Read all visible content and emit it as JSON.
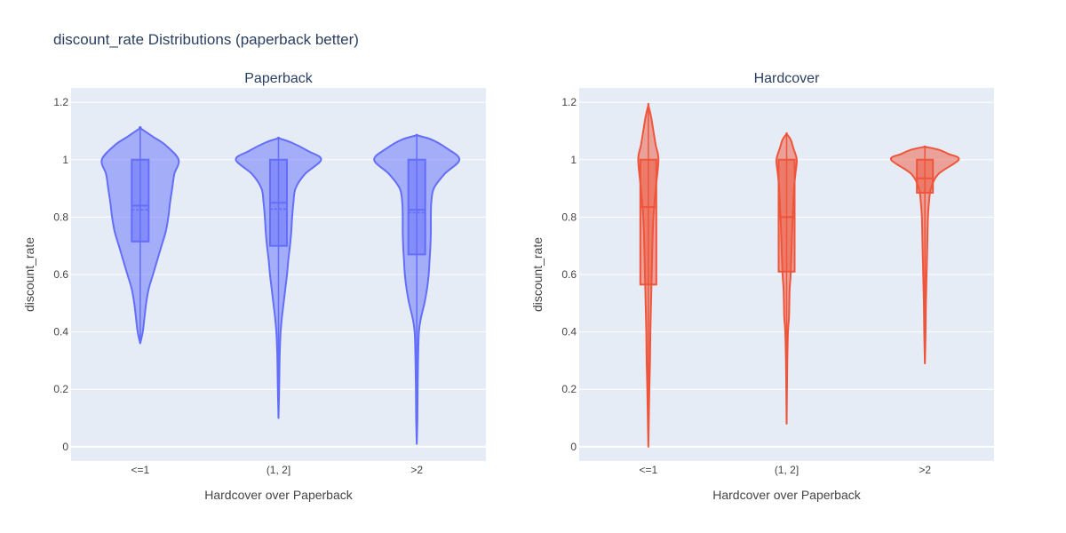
{
  "title": "discount_rate Distributions (paperback better)",
  "colors": {
    "plot_bg": "#e5ecf6",
    "grid": "#ffffff",
    "paperback": "#636efa",
    "hardcover": "#ef553b"
  },
  "chart_data": [
    {
      "type": "violin",
      "title": "Paperback",
      "xlabel": "Hardcover over Paperback",
      "ylabel": "discount_rate",
      "ylim": [
        -0.05,
        1.25
      ],
      "yticks": [
        0,
        0.2,
        0.4,
        0.6,
        0.8,
        1,
        1.2
      ],
      "ytick_labels": [
        "0",
        "0.2",
        "0.4",
        "0.6",
        "0.8",
        "1",
        "1.2"
      ],
      "grid": true,
      "categories": [
        "<=1",
        "(1, 2]",
        ">2"
      ],
      "color": "paperback",
      "violins": [
        {
          "category": "<=1",
          "box": {
            "q1": 0.715,
            "median": 0.84,
            "mean": 0.825,
            "q3": 1.0
          },
          "profile": [
            [
              0.36,
              0.0
            ],
            [
              0.4,
              0.06
            ],
            [
              0.45,
              0.1
            ],
            [
              0.5,
              0.14
            ],
            [
              0.55,
              0.2
            ],
            [
              0.6,
              0.3
            ],
            [
              0.65,
              0.4
            ],
            [
              0.7,
              0.5
            ],
            [
              0.75,
              0.6
            ],
            [
              0.8,
              0.66
            ],
            [
              0.85,
              0.7
            ],
            [
              0.9,
              0.75
            ],
            [
              0.95,
              0.8
            ],
            [
              1.0,
              0.9
            ],
            [
              1.05,
              0.6
            ],
            [
              1.08,
              0.3
            ],
            [
              1.11,
              0.0
            ]
          ]
        },
        {
          "category": "(1, 2]",
          "box": {
            "q1": 0.7,
            "median": 0.85,
            "mean": 0.828,
            "q3": 1.0
          },
          "profile": [
            [
              0.1,
              0.0
            ],
            [
              0.2,
              0.015
            ],
            [
              0.3,
              0.025
            ],
            [
              0.35,
              0.035
            ],
            [
              0.4,
              0.05
            ],
            [
              0.45,
              0.08
            ],
            [
              0.5,
              0.12
            ],
            [
              0.55,
              0.16
            ],
            [
              0.6,
              0.2
            ],
            [
              0.65,
              0.23
            ],
            [
              0.7,
              0.27
            ],
            [
              0.75,
              0.3
            ],
            [
              0.8,
              0.32
            ],
            [
              0.85,
              0.35
            ],
            [
              0.9,
              0.4
            ],
            [
              0.95,
              0.62
            ],
            [
              1.0,
              1.0
            ],
            [
              1.03,
              0.7
            ],
            [
              1.06,
              0.3
            ],
            [
              1.075,
              0.0
            ]
          ]
        },
        {
          "category": ">2",
          "box": {
            "q1": 0.67,
            "median": 0.825,
            "mean": 0.815,
            "q3": 1.0
          },
          "profile": [
            [
              0.01,
              0.0
            ],
            [
              0.1,
              0.015
            ],
            [
              0.2,
              0.02
            ],
            [
              0.3,
              0.03
            ],
            [
              0.4,
              0.05
            ],
            [
              0.45,
              0.1
            ],
            [
              0.5,
              0.18
            ],
            [
              0.55,
              0.24
            ],
            [
              0.6,
              0.28
            ],
            [
              0.65,
              0.3
            ],
            [
              0.7,
              0.32
            ],
            [
              0.75,
              0.33
            ],
            [
              0.8,
              0.33
            ],
            [
              0.85,
              0.34
            ],
            [
              0.9,
              0.4
            ],
            [
              0.95,
              0.65
            ],
            [
              1.0,
              1.0
            ],
            [
              1.04,
              0.7
            ],
            [
              1.07,
              0.35
            ],
            [
              1.085,
              0.0
            ]
          ]
        }
      ]
    },
    {
      "type": "violin",
      "title": "Hardcover",
      "xlabel": "Hardcover over Paperback",
      "ylabel": "discount_rate",
      "ylim": [
        -0.05,
        1.25
      ],
      "yticks": [
        0,
        0.2,
        0.4,
        0.6,
        0.8,
        1,
        1.2
      ],
      "ytick_labels": [
        "0",
        "0.2",
        "0.4",
        "0.6",
        "0.8",
        "1",
        "1.2"
      ],
      "grid": true,
      "categories": [
        "<=1",
        "(1, 2]",
        ">2"
      ],
      "color": "hardcover",
      "violins": [
        {
          "category": "<=1",
          "box": {
            "q1": 0.565,
            "median": 0.835,
            "mean": 0.835,
            "q3": 1.0
          },
          "profile": [
            [
              0.0,
              0.0
            ],
            [
              0.1,
              0.015
            ],
            [
              0.2,
              0.03
            ],
            [
              0.3,
              0.05
            ],
            [
              0.4,
              0.06
            ],
            [
              0.5,
              0.08
            ],
            [
              0.6,
              0.1
            ],
            [
              0.7,
              0.12
            ],
            [
              0.8,
              0.15
            ],
            [
              0.9,
              0.22
            ],
            [
              1.0,
              0.3
            ],
            [
              1.05,
              0.22
            ],
            [
              1.1,
              0.15
            ],
            [
              1.15,
              0.08
            ],
            [
              1.19,
              0.0
            ]
          ]
        },
        {
          "category": "(1, 2]",
          "box": {
            "q1": 0.61,
            "median": 0.8,
            "mean": 0.8,
            "q3": 1.0
          },
          "profile": [
            [
              0.08,
              0.0
            ],
            [
              0.2,
              0.01
            ],
            [
              0.3,
              0.02
            ],
            [
              0.4,
              0.04
            ],
            [
              0.45,
              0.07
            ],
            [
              0.5,
              0.08
            ],
            [
              0.55,
              0.09
            ],
            [
              0.6,
              0.12
            ],
            [
              0.7,
              0.15
            ],
            [
              0.8,
              0.18
            ],
            [
              0.9,
              0.22
            ],
            [
              0.95,
              0.26
            ],
            [
              1.0,
              0.3
            ],
            [
              1.04,
              0.2
            ],
            [
              1.07,
              0.12
            ],
            [
              1.09,
              0.0
            ]
          ]
        },
        {
          "category": ">2",
          "box": {
            "q1": 0.885,
            "median": 0.935,
            "mean": 0.935,
            "q3": 1.0
          },
          "profile": [
            [
              0.29,
              0.0
            ],
            [
              0.4,
              0.02
            ],
            [
              0.5,
              0.03
            ],
            [
              0.6,
              0.05
            ],
            [
              0.7,
              0.07
            ],
            [
              0.8,
              0.09
            ],
            [
              0.85,
              0.12
            ],
            [
              0.9,
              0.18
            ],
            [
              0.95,
              0.4
            ],
            [
              1.0,
              1.0
            ],
            [
              1.02,
              0.7
            ],
            [
              1.035,
              0.4
            ],
            [
              1.045,
              0.0
            ]
          ]
        }
      ]
    }
  ]
}
